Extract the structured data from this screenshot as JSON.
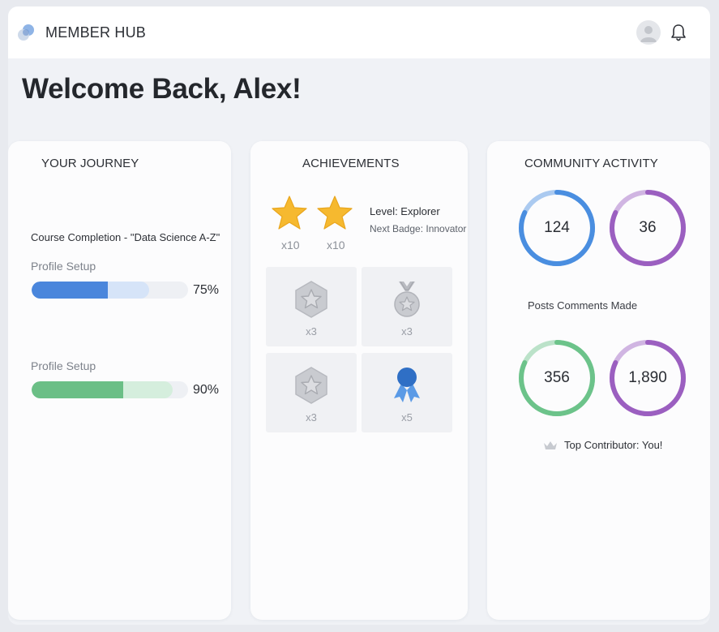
{
  "header": {
    "brand": "MEMBER HUB",
    "logo_icon": "logo-icon",
    "avatar_icon": "user-avatar-icon",
    "bell_icon": "bell-icon"
  },
  "welcome": "Welcome Back, Alex!",
  "journey": {
    "title": "YOUR JOURNEY",
    "course_label": "Course Completion - \"Data Science A-Z\"",
    "items": [
      {
        "label": "Profile Setup",
        "percent_text": "75%",
        "percent": 75,
        "color_dark": "#4a86dc",
        "color_light": "#d6e4f8"
      },
      {
        "label": "Profile Setup",
        "percent_text": "90%",
        "percent": 90,
        "color_dark": "#6bbf86",
        "color_light": "#d5eedd"
      }
    ]
  },
  "achievements": {
    "title": "ACHIEVEMENTS",
    "stars": [
      {
        "icon": "star-icon",
        "count": "x10"
      },
      {
        "icon": "star-icon",
        "count": "x10"
      }
    ],
    "level": "Level: Explorer",
    "next_badge": "Next Badge: Innovator",
    "badges": [
      {
        "icon": "hexagon-star-badge-icon",
        "count": "x3"
      },
      {
        "icon": "medal-icon",
        "count": "x3"
      },
      {
        "icon": "hexagon-star-badge-icon",
        "count": "x3"
      },
      {
        "icon": "ribbon-award-icon",
        "count": "x5"
      }
    ]
  },
  "community": {
    "title": "COMMUNITY ACTIVITY",
    "stats": [
      {
        "value": "124",
        "color": "#4a8ee0"
      },
      {
        "value": "36",
        "color": "#9b5fc0"
      },
      {
        "value": "356",
        "color": "#6cc38a"
      },
      {
        "value": "1,890",
        "color": "#9b5fc0"
      }
    ],
    "stats_label": "Posts Comments Made",
    "crown_icon": "crown-icon",
    "top_contributor": "Top Contributor: You!"
  }
}
